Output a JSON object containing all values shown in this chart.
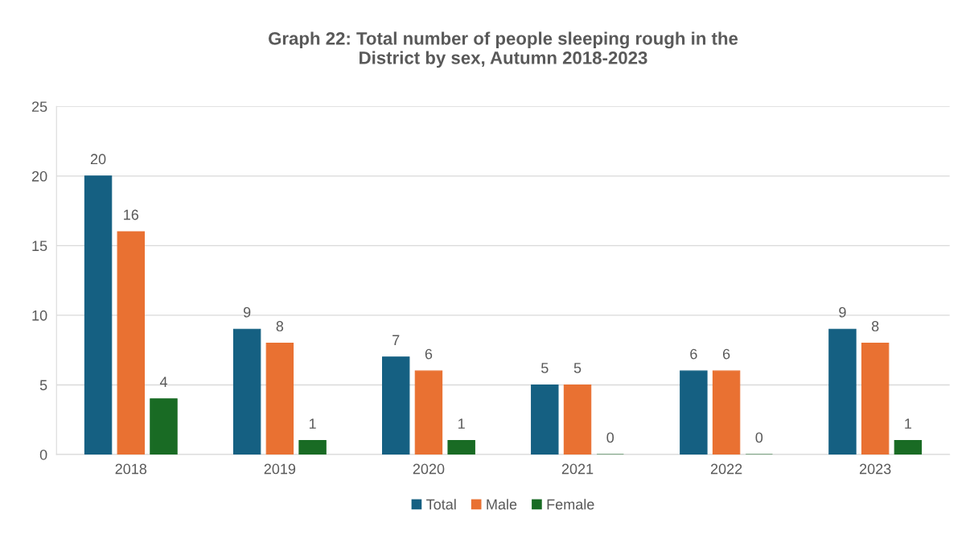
{
  "chart_data": {
    "type": "bar",
    "title": "Graph 22: Total number of people sleeping rough in the\nDistrict by sex, Autumn 2018-2023",
    "categories": [
      "2018",
      "2019",
      "2020",
      "2021",
      "2022",
      "2023"
    ],
    "series": [
      {
        "name": "Total",
        "color": "#156082",
        "values": [
          20,
          9,
          7,
          5,
          6,
          9
        ]
      },
      {
        "name": "Male",
        "color": "#e97132",
        "values": [
          16,
          8,
          6,
          5,
          6,
          8
        ]
      },
      {
        "name": "Female",
        "color": "#196b24",
        "values": [
          4,
          1,
          1,
          0,
          0,
          1
        ]
      }
    ],
    "ylim": [
      0,
      25
    ],
    "yticks": [
      0,
      5,
      10,
      15,
      20,
      25
    ],
    "grid": "y",
    "legend": "bottom",
    "data_labels": true
  }
}
